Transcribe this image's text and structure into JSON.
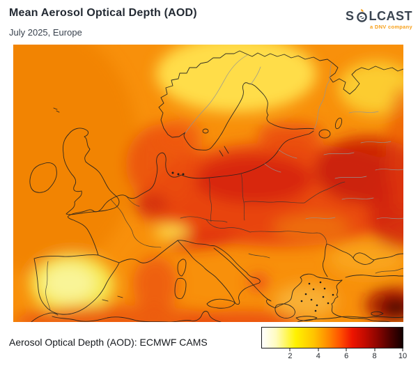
{
  "header": {
    "title": "Mean Aerosol Optical Depth (AOD)",
    "subtitle": "July 2025, Europe"
  },
  "logo": {
    "prefix": "S",
    "suffix": "LCAST",
    "tagline": "a DNV company",
    "accent_color": "#f7a01b",
    "text_color": "#3a4450"
  },
  "caption": {
    "label": "Aerosol Optical Depth (AOD): ECMWF CAMS"
  },
  "chart_data": {
    "type": "heatmap",
    "title": "Mean Aerosol Optical Depth (AOD)",
    "subtitle": "July 2025, Europe",
    "region": "Europe",
    "variable": "Aerosol Optical Depth (AOD)",
    "source": "ECMWF CAMS",
    "legend_position": "bottom-right",
    "colorbar": {
      "min": 0,
      "max": 10,
      "ticks": [
        {
          "label": "2",
          "pct": 20
        },
        {
          "label": "4",
          "pct": 40
        },
        {
          "label": "6",
          "pct": 60
        },
        {
          "label": "8",
          "pct": 80
        },
        {
          "label": "10",
          "pct": 100
        }
      ],
      "gradient_stops": [
        {
          "color": "#ffffff",
          "pct": 0
        },
        {
          "color": "#fffbc0",
          "pct": 10
        },
        {
          "color": "#fff200",
          "pct": 24
        },
        {
          "color": "#ffc300",
          "pct": 37
        },
        {
          "color": "#ff8a00",
          "pct": 47
        },
        {
          "color": "#ff4e00",
          "pct": 56
        },
        {
          "color": "#ee1500",
          "pct": 64
        },
        {
          "color": "#c30b00",
          "pct": 73
        },
        {
          "color": "#8d0500",
          "pct": 82
        },
        {
          "color": "#4d0100",
          "pct": 91
        },
        {
          "color": "#140000",
          "pct": 100
        }
      ]
    },
    "regional_values_est": [
      {
        "region": "Iberian Peninsula interior",
        "aod_est": 2
      },
      {
        "region": "Northern Scandinavia",
        "aod_est": 2.5
      },
      {
        "region": "Alps",
        "aod_est": 2.5
      },
      {
        "region": "British Isles",
        "aod_est": 4
      },
      {
        "region": "Atlantic margin (west edge)",
        "aod_est": 4.5
      },
      {
        "region": "North Sea / Benelux",
        "aod_est": 6
      },
      {
        "region": "Central Europe (Germany-Poland)",
        "aod_est": 6.5
      },
      {
        "region": "Po Valley (northern Italy)",
        "aod_est": 6.5
      },
      {
        "region": "Eastern Europe / western Russia",
        "aod_est": 7
      },
      {
        "region": "Aegean / Greece",
        "aod_est": 3.5
      },
      {
        "region": "Black Sea",
        "aod_est": 4
      },
      {
        "region": "Southeastern Turkey hotspot",
        "aod_est": 9.5
      }
    ]
  }
}
